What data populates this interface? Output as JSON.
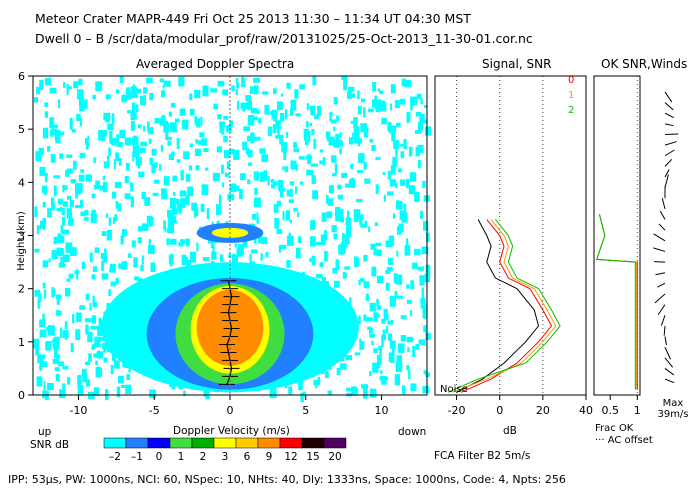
{
  "header": {
    "line1": "Meteor Crater   MAPR-449   Fri Oct 25 2013 11:30 – 11:34 UT 04:30 MST",
    "line2": "Dwell   0 –   B     /scr/data/modular_prof/raw/20131025/25-Oct-2013_11-30-01.cor.nc"
  },
  "footer": {
    "params": "IPP: 53μs,  PW: 1000ns,  NCI: 60,  NSpec: 10, NHts: 40,  Dly: 1333ns,  Space: 1000ns,  Code: 4,  Npts: 256"
  },
  "colors": {
    "snr_legend": [
      "#00ffff",
      "#2080ff",
      "#0000ff",
      "#40dd40",
      "#00b000",
      "#ffff00",
      "#ffcc00",
      "#ff8c00",
      "#ff0000",
      "#200000",
      "#500060"
    ],
    "line_colors": [
      "#ff0000",
      "#ff9900",
      "#00c000"
    ]
  },
  "chart_data": [
    {
      "type": "heatmap",
      "title": "Averaged Doppler Spectra",
      "xlabel": "Doppler Velocity (m/s)",
      "ylabel": "Height (km)",
      "xlim": [
        -13,
        13
      ],
      "ylim": [
        0,
        6
      ],
      "xticks": [
        -10,
        -5,
        0,
        5,
        10
      ],
      "yticks": [
        0,
        1,
        2,
        3,
        4,
        5,
        6
      ],
      "x_left_label": "up",
      "x_right_label": "down",
      "colorbar": {
        "label": "SNR dB",
        "ticks": [
          "–2",
          "–1",
          "0",
          "1",
          "2",
          "3",
          "6",
          "9",
          "12",
          "15",
          "20"
        ]
      },
      "mean_velocity_profile": {
        "heights_km": [
          0.2,
          0.35,
          0.5,
          0.65,
          0.8,
          0.95,
          1.1,
          1.25,
          1.4,
          1.55,
          1.7,
          1.85,
          2.0,
          2.15
        ],
        "velocity_ms": [
          -0.2,
          0.0,
          0.1,
          0.0,
          -0.1,
          -0.2,
          0.0,
          0.1,
          0.0,
          -0.1,
          0.0,
          0.1,
          0.0,
          -0.1
        ]
      }
    },
    {
      "type": "line",
      "title": "Signal, SNR",
      "xlabel": "dB",
      "xlim": [
        -30,
        40
      ],
      "xticks": [
        -20,
        0,
        20,
        40
      ],
      "ylim": [
        0,
        6
      ],
      "annotations": [
        "Noise"
      ],
      "series": [
        {
          "name": "Signal",
          "height_km": [
            0.05,
            0.3,
            0.6,
            1.0,
            1.3,
            1.6,
            2.0,
            2.2,
            2.5,
            2.8,
            3.0,
            3.3
          ],
          "db": [
            -20,
            -8,
            2,
            12,
            18,
            16,
            8,
            -2,
            -6,
            -4,
            -6,
            -10
          ]
        },
        {
          "name": "0",
          "height_km": [
            0.05,
            0.3,
            0.6,
            1.0,
            1.3,
            1.6,
            2.0,
            2.2,
            2.5,
            2.8,
            3.0,
            3.3
          ],
          "db": [
            -18,
            -4,
            8,
            18,
            24,
            20,
            14,
            4,
            0,
            2,
            0,
            -6
          ]
        },
        {
          "name": "1",
          "height_km": [
            0.05,
            0.3,
            0.6,
            1.0,
            1.3,
            1.6,
            2.0,
            2.2,
            2.5,
            2.8,
            3.0,
            3.3
          ],
          "db": [
            -22,
            -6,
            10,
            20,
            26,
            22,
            16,
            6,
            2,
            4,
            2,
            -4
          ]
        },
        {
          "name": "2",
          "height_km": [
            0.05,
            0.3,
            0.6,
            1.0,
            1.3,
            1.6,
            2.0,
            2.2,
            2.5,
            2.8,
            3.0,
            3.3
          ],
          "db": [
            -24,
            -10,
            12,
            22,
            28,
            24,
            18,
            8,
            4,
            6,
            4,
            -2
          ]
        }
      ]
    },
    {
      "type": "line",
      "title": "OK SNR,Winds",
      "legend": [
        "0",
        "1",
        "2"
      ],
      "xticks": [
        "0.5",
        "1"
      ],
      "xlim": [
        0.2,
        1.05
      ],
      "ylim": [
        0,
        6
      ],
      "xlabel": "Frac OK",
      "note": "··· AC offset",
      "wind_scale": "Max 39m/s"
    }
  ],
  "labels": {
    "fca": "FCA Filter B2   5m/s"
  }
}
